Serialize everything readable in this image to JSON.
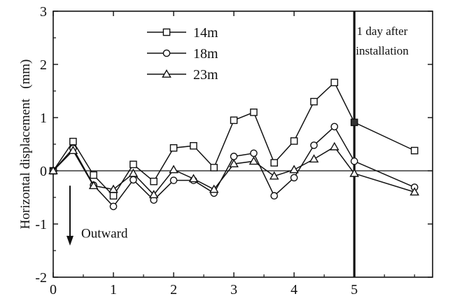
{
  "chart_data": {
    "type": "line",
    "title": "",
    "xlabel": "",
    "ylabel": "Horizontal displacement   (mm)",
    "xlim": [
      0,
      6.3
    ],
    "ylim": [
      -2,
      3
    ],
    "xticks": [
      0,
      1,
      2,
      3,
      4,
      5
    ],
    "xtick_labels": [
      "0",
      "1",
      "2",
      "3",
      "4",
      "5"
    ],
    "yticks": [
      -2,
      -1,
      0,
      1,
      2,
      3
    ],
    "ytick_labels": [
      "-2",
      "-1",
      "0",
      "1",
      "2",
      "3"
    ],
    "grid": false,
    "legend_position": "top-left",
    "x": [
      0,
      0.33,
      0.67,
      1,
      1.33,
      1.67,
      2,
      2.33,
      2.67,
      3,
      3.33,
      3.67,
      4,
      4.33,
      4.67,
      5,
      6
    ],
    "series": [
      {
        "name": "14m",
        "marker": "square",
        "values": [
          0,
          0.55,
          -0.08,
          -0.47,
          0.12,
          -0.2,
          0.43,
          0.47,
          0.06,
          0.95,
          1.1,
          0.15,
          0.56,
          1.3,
          1.66,
          0.91,
          0.38
        ]
      },
      {
        "name": "18m",
        "marker": "circle",
        "values": [
          0,
          0.42,
          -0.27,
          -0.67,
          -0.17,
          -0.55,
          -0.18,
          -0.18,
          -0.42,
          0.27,
          0.33,
          -0.47,
          -0.13,
          0.48,
          0.83,
          0.18,
          -0.31
        ]
      },
      {
        "name": "23m",
        "marker": "triangle",
        "values": [
          0,
          0.38,
          -0.28,
          -0.35,
          -0.05,
          -0.45,
          0.02,
          -0.15,
          -0.35,
          0.13,
          0.18,
          -0.1,
          0.02,
          0.22,
          0.45,
          -0.05,
          -0.4
        ]
      }
    ],
    "highlight_point": {
      "series": "14m",
      "x": 5,
      "y": 0.91
    },
    "vertical_line": {
      "x": 5,
      "label_lines": [
        "1 day after",
        "installation"
      ]
    },
    "horizontal_reference": 0,
    "arrow_annotation": {
      "label": "Outward",
      "direction": "down"
    }
  }
}
